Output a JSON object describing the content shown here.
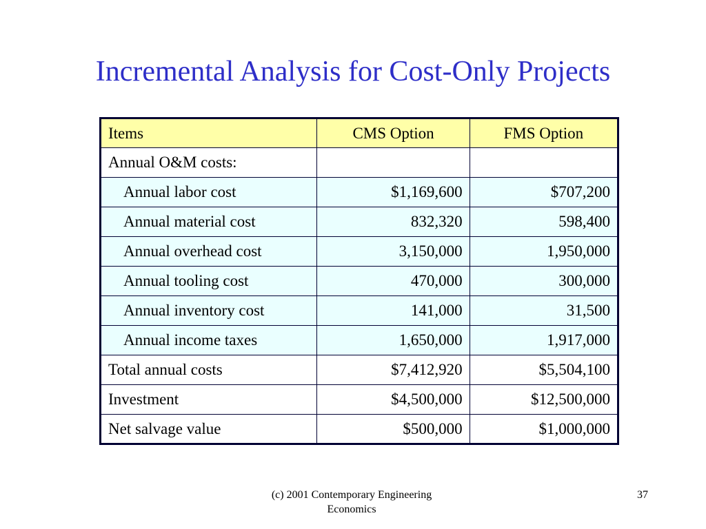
{
  "slide": {
    "title": "Incremental Analysis for Cost-Only Projects",
    "footer": "(c) 2001 Contemporary Engineering Economics",
    "page_number": "37"
  },
  "table": {
    "headers": [
      "Items",
      "CMS Option",
      "FMS Option"
    ],
    "rows": [
      {
        "label": "Annual O&M costs:",
        "cms": "",
        "fms": ""
      },
      {
        "label": "Annual labor cost",
        "cms": "$1,169,600",
        "fms": "$707,200"
      },
      {
        "label": "Annual material cost",
        "cms": "832,320",
        "fms": "598,400"
      },
      {
        "label": "Annual overhead cost",
        "cms": "3,150,000",
        "fms": "1,950,000"
      },
      {
        "label": "Annual tooling cost",
        "cms": "470,000",
        "fms": "300,000"
      },
      {
        "label": "Annual inventory cost",
        "cms": "141,000",
        "fms": "31,500"
      },
      {
        "label": "Annual income taxes",
        "cms": "1,650,000",
        "fms": "1,917,000"
      },
      {
        "label": "Total annual costs",
        "cms": "$7,412,920",
        "fms": "$5,504,100"
      },
      {
        "label": "Investment",
        "cms": "$4,500,000",
        "fms": "$12,500,000"
      },
      {
        "label": "Net salvage value",
        "cms": "$500,000",
        "fms": "$1,000,000"
      }
    ]
  },
  "colors": {
    "title": "#2e2ec8",
    "header_fill": "#ffffa8",
    "sub_row_fill": "#eaffff",
    "border": "#000033"
  }
}
